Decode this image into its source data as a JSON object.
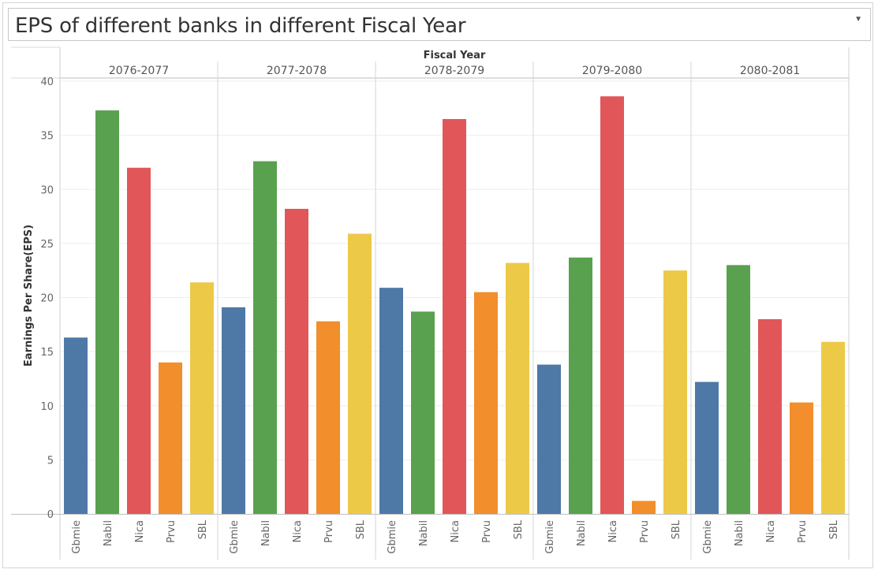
{
  "header": {
    "title": "EPS of different banks in different Fiscal Year",
    "dropdown_icon": "caret-down-icon"
  },
  "chart_data": {
    "type": "bar",
    "column_header": "Fiscal Year",
    "ylabel": "Earnings Per Share(EPS)",
    "ylim": [
      0,
      40
    ],
    "yticks": [
      0,
      5,
      10,
      15,
      20,
      25,
      30,
      35,
      40
    ],
    "grid": true,
    "banks": [
      "Gbmie",
      "Nabil",
      "Nica",
      "Prvu",
      "SBL"
    ],
    "colors": {
      "Gbmie": "#4e79a7",
      "Nabil": "#59a14f",
      "Nica": "#e15759",
      "Prvu": "#f28e2b",
      "SBL": "#edc948"
    },
    "groups": [
      {
        "year": "2076-2077",
        "values": [
          16.3,
          37.3,
          32.0,
          14.0,
          21.4
        ]
      },
      {
        "year": "2077-2078",
        "values": [
          19.1,
          32.6,
          28.2,
          17.8,
          25.9
        ]
      },
      {
        "year": "2078-2079",
        "values": [
          20.9,
          18.7,
          36.5,
          20.5,
          23.2
        ]
      },
      {
        "year": "2079-2080",
        "values": [
          13.8,
          23.7,
          38.6,
          1.2,
          22.5
        ]
      },
      {
        "year": "2080-2081",
        "values": [
          12.2,
          23.0,
          18.0,
          10.3,
          15.9
        ]
      }
    ]
  }
}
